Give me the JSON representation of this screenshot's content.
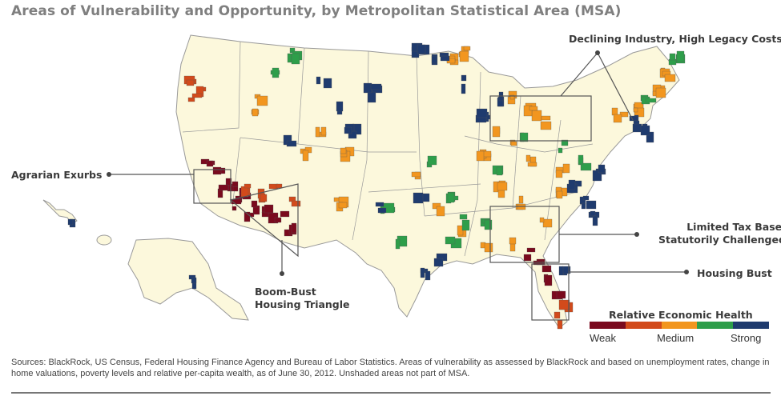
{
  "title": "Areas of Vulnerability and Opportunity, by Metropolitan Statistical Area (MSA)",
  "callouts": {
    "declining": "Declining Industry, High Legacy Costs",
    "agrarian": "Agrarian Exurbs",
    "limited_line1": "Limited Tax Base,",
    "limited_line2": "Statutorily Challenged",
    "housing_bust": "Housing Bust",
    "boom_line1": "Boom-Bust",
    "boom_line2": "Housing Triangle"
  },
  "legend": {
    "title": "Relative Economic Health",
    "low_label": "Weak",
    "mid_label": "Medium",
    "high_label": "Strong",
    "colors": [
      "#7a0a1e",
      "#d24a1b",
      "#f2961f",
      "#2e9e4a",
      "#1f3b6e"
    ]
  },
  "map_colors": {
    "land": "#fcf8dc",
    "border": "#999999",
    "weak": "#7a0a1e",
    "weak_medium": "#d24a1b",
    "medium": "#f2961f",
    "medium_strong": "#2e9e4a",
    "strong": "#1f3b6e"
  },
  "sources": "Sources: BlackRock, US Census, Federal Housing Finance Agency and Bureau of Labor Statistics. Areas of vulnerability as assessed by BlackRock and based on unemployment rates, change in home valuations, poverty levels and relative per-capita wealth, as of June 30, 2012. Unshaded areas not part of MSA."
}
